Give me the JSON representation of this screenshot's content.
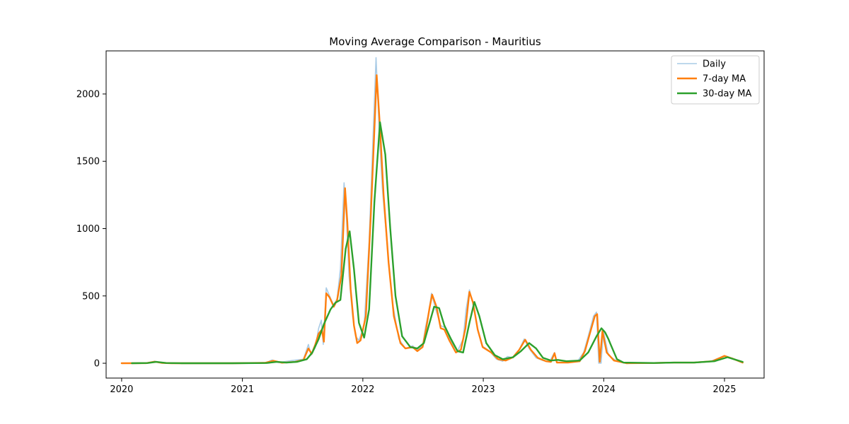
{
  "chart_data": {
    "type": "line",
    "title": "Moving Average Comparison - Mauritius",
    "xlabel": "",
    "ylabel": "",
    "x_axis": {
      "type": "date",
      "range": [
        "2019-11-15",
        "2025-05-01"
      ],
      "ticks": [
        {
          "value": "2020-01-01",
          "label": "2020"
        },
        {
          "value": "2021-01-01",
          "label": "2021"
        },
        {
          "value": "2022-01-01",
          "label": "2022"
        },
        {
          "value": "2023-01-01",
          "label": "2023"
        },
        {
          "value": "2024-01-01",
          "label": "2024"
        },
        {
          "value": "2025-01-01",
          "label": "2025"
        }
      ]
    },
    "y_axis": {
      "range": [
        -110,
        2320
      ],
      "ticks": [
        {
          "value": 0,
          "label": "0"
        },
        {
          "value": 500,
          "label": "500"
        },
        {
          "value": 1000,
          "label": "1000"
        },
        {
          "value": 1500,
          "label": "1500"
        },
        {
          "value": 2000,
          "label": "2000"
        }
      ]
    },
    "grid": false,
    "legend": {
      "placement": "top-right"
    },
    "series": [
      {
        "name": "Daily",
        "color": "#a9cbe6",
        "style": "thin",
        "points": [
          [
            "2020-01-05",
            0
          ],
          [
            "2020-03-20",
            2
          ],
          [
            "2020-04-10",
            15
          ],
          [
            "2020-05-01",
            3
          ],
          [
            "2020-07-01",
            0
          ],
          [
            "2020-12-01",
            0
          ],
          [
            "2021-03-15",
            5
          ],
          [
            "2021-04-01",
            25
          ],
          [
            "2021-04-20",
            5
          ],
          [
            "2021-06-01",
            20
          ],
          [
            "2021-07-05",
            30
          ],
          [
            "2021-07-20",
            140
          ],
          [
            "2021-07-28",
            60
          ],
          [
            "2021-08-10",
            120
          ],
          [
            "2021-08-20",
            260
          ],
          [
            "2021-08-28",
            320
          ],
          [
            "2021-09-03",
            140
          ],
          [
            "2021-09-12",
            560
          ],
          [
            "2021-09-22",
            500
          ],
          [
            "2021-10-05",
            430
          ],
          [
            "2021-10-15",
            480
          ],
          [
            "2021-10-25",
            700
          ],
          [
            "2021-11-05",
            1340
          ],
          [
            "2021-11-12",
            1100
          ],
          [
            "2021-11-20",
            650
          ],
          [
            "2021-12-01",
            350
          ],
          [
            "2021-12-10",
            200
          ],
          [
            "2021-12-20",
            170
          ],
          [
            "2022-01-05",
            280
          ],
          [
            "2022-01-20",
            900
          ],
          [
            "2022-02-10",
            2270
          ],
          [
            "2022-02-20",
            1700
          ],
          [
            "2022-03-01",
            1300
          ],
          [
            "2022-03-15",
            900
          ],
          [
            "2022-04-01",
            450
          ],
          [
            "2022-04-20",
            180
          ],
          [
            "2022-05-10",
            110
          ],
          [
            "2022-06-01",
            130
          ],
          [
            "2022-06-15",
            100
          ],
          [
            "2022-07-01",
            130
          ],
          [
            "2022-07-10",
            270
          ],
          [
            "2022-07-20",
            380
          ],
          [
            "2022-07-28",
            520
          ],
          [
            "2022-08-10",
            400
          ],
          [
            "2022-08-25",
            280
          ],
          [
            "2022-09-10",
            260
          ],
          [
            "2022-09-25",
            160
          ],
          [
            "2022-10-15",
            90
          ],
          [
            "2022-11-01",
            180
          ],
          [
            "2022-11-10",
            400
          ],
          [
            "2022-11-20",
            545
          ],
          [
            "2022-12-01",
            440
          ],
          [
            "2022-12-15",
            250
          ],
          [
            "2022-12-28",
            130
          ],
          [
            "2023-01-20",
            90
          ],
          [
            "2023-02-10",
            30
          ],
          [
            "2023-03-01",
            15
          ],
          [
            "2023-03-15",
            50
          ],
          [
            "2023-04-01",
            40
          ],
          [
            "2023-04-20",
            100
          ],
          [
            "2023-05-05",
            180
          ],
          [
            "2023-05-20",
            110
          ],
          [
            "2023-06-10",
            40
          ],
          [
            "2023-07-01",
            20
          ],
          [
            "2023-07-20",
            10
          ],
          [
            "2023-08-05",
            80
          ],
          [
            "2023-08-12",
            5
          ],
          [
            "2023-09-01",
            5
          ],
          [
            "2023-10-15",
            20
          ],
          [
            "2023-11-01",
            80
          ],
          [
            "2023-11-15",
            200
          ],
          [
            "2023-12-01",
            350
          ],
          [
            "2023-12-10",
            380
          ],
          [
            "2023-12-17",
            0
          ],
          [
            "2023-12-24",
            0
          ],
          [
            "2023-12-31",
            240
          ],
          [
            "2024-01-15",
            60
          ],
          [
            "2024-02-10",
            15
          ],
          [
            "2024-03-15",
            0
          ],
          [
            "2024-06-01",
            2
          ],
          [
            "2024-08-01",
            5
          ],
          [
            "2024-10-01",
            5
          ],
          [
            "2024-11-20",
            15
          ],
          [
            "2025-01-01",
            55
          ],
          [
            "2025-01-20",
            40
          ],
          [
            "2025-02-25",
            5
          ]
        ]
      },
      {
        "name": "7-day MA",
        "color": "#ff7f0e",
        "style": "thick",
        "points": [
          [
            "2020-01-01",
            0
          ],
          [
            "2020-03-15",
            1
          ],
          [
            "2020-04-10",
            12
          ],
          [
            "2020-05-01",
            3
          ],
          [
            "2020-06-01",
            0
          ],
          [
            "2020-12-01",
            0
          ],
          [
            "2021-03-10",
            3
          ],
          [
            "2021-04-05",
            18
          ],
          [
            "2021-05-01",
            4
          ],
          [
            "2021-06-10",
            10
          ],
          [
            "2021-07-05",
            25
          ],
          [
            "2021-07-20",
            110
          ],
          [
            "2021-07-30",
            70
          ],
          [
            "2021-08-10",
            140
          ],
          [
            "2021-08-20",
            220
          ],
          [
            "2021-08-30",
            250
          ],
          [
            "2021-09-05",
            160
          ],
          [
            "2021-09-12",
            520
          ],
          [
            "2021-09-22",
            490
          ],
          [
            "2021-10-05",
            420
          ],
          [
            "2021-10-15",
            470
          ],
          [
            "2021-10-28",
            650
          ],
          [
            "2021-11-08",
            1300
          ],
          [
            "2021-11-15",
            1050
          ],
          [
            "2021-11-25",
            550
          ],
          [
            "2021-12-05",
            280
          ],
          [
            "2021-12-15",
            150
          ],
          [
            "2021-12-25",
            170
          ],
          [
            "2022-01-10",
            350
          ],
          [
            "2022-01-25",
            1100
          ],
          [
            "2022-02-12",
            2140
          ],
          [
            "2022-02-22",
            1750
          ],
          [
            "2022-03-05",
            1250
          ],
          [
            "2022-03-20",
            750
          ],
          [
            "2022-04-05",
            350
          ],
          [
            "2022-04-25",
            150
          ],
          [
            "2022-05-10",
            110
          ],
          [
            "2022-06-01",
            120
          ],
          [
            "2022-06-15",
            90
          ],
          [
            "2022-07-01",
            120
          ],
          [
            "2022-07-12",
            260
          ],
          [
            "2022-07-22",
            410
          ],
          [
            "2022-07-30",
            510
          ],
          [
            "2022-08-12",
            420
          ],
          [
            "2022-08-25",
            260
          ],
          [
            "2022-09-05",
            250
          ],
          [
            "2022-09-20",
            170
          ],
          [
            "2022-10-10",
            80
          ],
          [
            "2022-10-25",
            100
          ],
          [
            "2022-11-08",
            260
          ],
          [
            "2022-11-20",
            530
          ],
          [
            "2022-12-01",
            450
          ],
          [
            "2022-12-15",
            250
          ],
          [
            "2022-12-30",
            120
          ],
          [
            "2023-01-25",
            80
          ],
          [
            "2023-02-15",
            30
          ],
          [
            "2023-03-10",
            20
          ],
          [
            "2023-04-01",
            45
          ],
          [
            "2023-04-20",
            100
          ],
          [
            "2023-05-08",
            175
          ],
          [
            "2023-05-25",
            100
          ],
          [
            "2023-06-15",
            40
          ],
          [
            "2023-07-10",
            15
          ],
          [
            "2023-07-25",
            10
          ],
          [
            "2023-08-05",
            75
          ],
          [
            "2023-08-12",
            5
          ],
          [
            "2023-09-15",
            5
          ],
          [
            "2023-10-20",
            15
          ],
          [
            "2023-11-05",
            90
          ],
          [
            "2023-11-20",
            220
          ],
          [
            "2023-12-05",
            350
          ],
          [
            "2023-12-12",
            365
          ],
          [
            "2023-12-20",
            10
          ],
          [
            "2023-12-28",
            240
          ],
          [
            "2024-01-10",
            80
          ],
          [
            "2024-02-01",
            20
          ],
          [
            "2024-03-10",
            0
          ],
          [
            "2024-06-01",
            2
          ],
          [
            "2024-08-01",
            5
          ],
          [
            "2024-10-01",
            5
          ],
          [
            "2024-11-25",
            15
          ],
          [
            "2025-01-01",
            55
          ],
          [
            "2025-01-25",
            35
          ],
          [
            "2025-02-25",
            5
          ]
        ]
      },
      {
        "name": "30-day MA",
        "color": "#2ca02c",
        "style": "thick",
        "points": [
          [
            "2020-02-01",
            0
          ],
          [
            "2020-03-20",
            2
          ],
          [
            "2020-04-15",
            10
          ],
          [
            "2020-05-15",
            2
          ],
          [
            "2020-07-01",
            0
          ],
          [
            "2020-12-01",
            0
          ],
          [
            "2021-03-15",
            2
          ],
          [
            "2021-04-15",
            10
          ],
          [
            "2021-05-15",
            5
          ],
          [
            "2021-06-15",
            10
          ],
          [
            "2021-07-15",
            30
          ],
          [
            "2021-08-01",
            80
          ],
          [
            "2021-08-20",
            180
          ],
          [
            "2021-09-05",
            290
          ],
          [
            "2021-09-25",
            400
          ],
          [
            "2021-10-10",
            450
          ],
          [
            "2021-10-25",
            470
          ],
          [
            "2021-11-10",
            850
          ],
          [
            "2021-11-22",
            980
          ],
          [
            "2021-12-05",
            700
          ],
          [
            "2021-12-20",
            300
          ],
          [
            "2022-01-05",
            190
          ],
          [
            "2022-01-20",
            400
          ],
          [
            "2022-02-05",
            1200
          ],
          [
            "2022-02-22",
            1790
          ],
          [
            "2022-03-10",
            1550
          ],
          [
            "2022-03-25",
            1000
          ],
          [
            "2022-04-10",
            500
          ],
          [
            "2022-04-30",
            200
          ],
          [
            "2022-05-25",
            120
          ],
          [
            "2022-06-15",
            110
          ],
          [
            "2022-07-05",
            150
          ],
          [
            "2022-07-20",
            280
          ],
          [
            "2022-08-05",
            420
          ],
          [
            "2022-08-20",
            410
          ],
          [
            "2022-09-05",
            280
          ],
          [
            "2022-09-25",
            180
          ],
          [
            "2022-10-15",
            90
          ],
          [
            "2022-11-01",
            80
          ],
          [
            "2022-11-20",
            300
          ],
          [
            "2022-12-05",
            455
          ],
          [
            "2022-12-20",
            350
          ],
          [
            "2023-01-10",
            150
          ],
          [
            "2023-02-05",
            60
          ],
          [
            "2023-03-01",
            30
          ],
          [
            "2023-04-01",
            45
          ],
          [
            "2023-04-25",
            90
          ],
          [
            "2023-05-20",
            150
          ],
          [
            "2023-06-10",
            110
          ],
          [
            "2023-07-01",
            40
          ],
          [
            "2023-07-25",
            20
          ],
          [
            "2023-08-15",
            25
          ],
          [
            "2023-09-10",
            15
          ],
          [
            "2023-10-20",
            20
          ],
          [
            "2023-11-15",
            80
          ],
          [
            "2023-12-10",
            200
          ],
          [
            "2023-12-25",
            260
          ],
          [
            "2024-01-05",
            230
          ],
          [
            "2024-01-15",
            180
          ],
          [
            "2024-01-22",
            140
          ],
          [
            "2024-02-10",
            30
          ],
          [
            "2024-03-01",
            5
          ],
          [
            "2024-06-01",
            2
          ],
          [
            "2024-08-01",
            5
          ],
          [
            "2024-10-01",
            5
          ],
          [
            "2024-12-01",
            15
          ],
          [
            "2025-01-10",
            45
          ],
          [
            "2025-02-25",
            10
          ]
        ]
      }
    ]
  }
}
